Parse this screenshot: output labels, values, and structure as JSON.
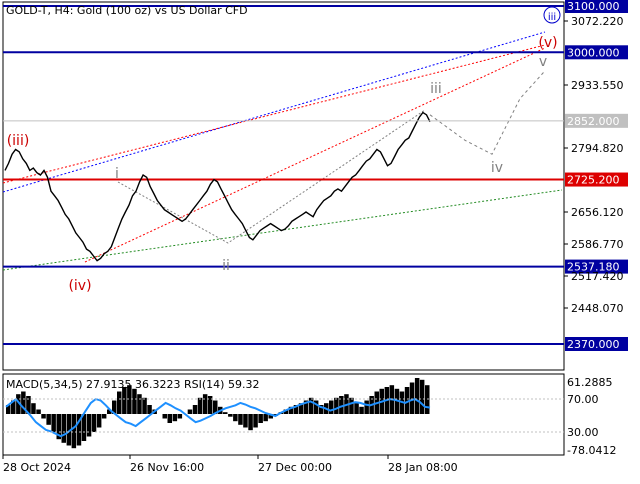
{
  "header": {
    "symbol_title": "GOLD-T, H4:  Gold (100 oz) vs US Dollar CFD",
    "macd_label": "MACD(5,34,5) 27.9135 36.3223 RSI(14) 59.32"
  },
  "colors": {
    "level_line": "#0000a0",
    "key_level_line": "#dd0000",
    "wave_red": "#cc0000",
    "wave_gray": "#808080",
    "price_line": "#000000",
    "rsi_line": "#1e90ff",
    "upper_channel": "#0000ff",
    "red_channel": "#ff0000",
    "green_trend": "#228b22",
    "current_price_label": "#c0c0c0"
  },
  "chart_data": {
    "type": "line",
    "title": "GOLD-T, H4:  Gold (100 oz) vs US Dollar CFD",
    "ylim": [
      2370,
      3100
    ],
    "price_axis_ticks": [
      "3072.220",
      "2933.550",
      "2794.820",
      "2656.120",
      "2586.770",
      "2517.420",
      "2448.070"
    ],
    "x_tick_labels": [
      "28 Oct 2024",
      "26 Nov 16:00",
      "27 Dec 00:00",
      "28 Jan 08:00"
    ],
    "current_price": {
      "value": 2852.0,
      "label": "2852.000"
    },
    "levels": [
      {
        "value": 3100.0,
        "label": "3100.000",
        "color": "#0000a0"
      },
      {
        "value": 3000.0,
        "label": "3000.000",
        "color": "#0000a0"
      },
      {
        "value": 2725.2,
        "label": "2725.200",
        "color": "#dd0000"
      },
      {
        "value": 2537.18,
        "label": "2537.180",
        "color": "#0000a0"
      },
      {
        "value": 2370.0,
        "label": "2370.000",
        "color": "#0000a0"
      }
    ],
    "wave_labels": [
      {
        "text": "(iii)",
        "color": "#cc0000"
      },
      {
        "text": "(iv)",
        "color": "#cc0000"
      },
      {
        "text": "(v)",
        "color": "#cc0000"
      },
      {
        "text": "i",
        "color": "#808080"
      },
      {
        "text": "ii",
        "color": "#808080"
      },
      {
        "text": "iii",
        "color": "#808080"
      },
      {
        "text": "iv",
        "color": "#808080"
      },
      {
        "text": "v",
        "color": "#808080"
      },
      {
        "text": "iii",
        "color": "#0000cc",
        "circled": true
      }
    ],
    "series": [
      {
        "values": [
          2745,
          2760,
          2780,
          2790,
          2785,
          2770,
          2760,
          2745,
          2750,
          2740,
          2735,
          2745,
          2730,
          2700,
          2690,
          2680,
          2665,
          2650,
          2640,
          2625,
          2610,
          2600,
          2590,
          2575,
          2570,
          2560,
          2550,
          2555,
          2565,
          2570,
          2580,
          2600,
          2620,
          2640,
          2655,
          2670,
          2690,
          2700,
          2720,
          2735,
          2730,
          2710,
          2695,
          2680,
          2670,
          2660,
          2655,
          2650,
          2645,
          2640,
          2635,
          2640,
          2650,
          2660,
          2670,
          2680,
          2690,
          2700,
          2715,
          2725,
          2720,
          2705,
          2690,
          2675,
          2660,
          2650,
          2640,
          2630,
          2615,
          2600,
          2595,
          2605,
          2615,
          2620,
          2625,
          2630,
          2625,
          2620,
          2615,
          2618,
          2625,
          2635,
          2640,
          2645,
          2650,
          2655,
          2650,
          2645,
          2660,
          2670,
          2680,
          2685,
          2690,
          2700,
          2705,
          2700,
          2710,
          2720,
          2730,
          2735,
          2745,
          2755,
          2765,
          2770,
          2780,
          2790,
          2785,
          2770,
          2755,
          2760,
          2775,
          2790,
          2800,
          2810,
          2815,
          2830,
          2845,
          2860,
          2870,
          2865,
          2850
        ],
        "color": "#000000"
      }
    ],
    "projection": {
      "points": [
        2865,
        2810,
        2780,
        2900,
        2960
      ]
    },
    "macd_axis_ticks": [
      "61.2885",
      "70.00",
      "30.00",
      "-78.0412"
    ],
    "macd_hist": [
      10,
      15,
      22,
      25,
      20,
      12,
      5,
      -5,
      -12,
      -20,
      -28,
      -32,
      -35,
      -38,
      -35,
      -30,
      -25,
      -20,
      -15,
      -5,
      5,
      15,
      25,
      30,
      32,
      28,
      22,
      18,
      10,
      5,
      0,
      -5,
      -10,
      -8,
      -5,
      0,
      5,
      10,
      18,
      22,
      20,
      15,
      8,
      2,
      -3,
      -8,
      -12,
      -15,
      -18,
      -15,
      -10,
      -8,
      -5,
      -2,
      2,
      5,
      8,
      10,
      12,
      15,
      18,
      15,
      10,
      12,
      15,
      18,
      20,
      22,
      18,
      12,
      8,
      15,
      20,
      25,
      28,
      30,
      32,
      28,
      25,
      30,
      35,
      40,
      38,
      32
    ],
    "rsi": [
      60,
      65,
      70,
      62,
      55,
      48,
      40,
      35,
      30,
      28,
      25,
      22,
      25,
      30,
      35,
      45,
      55,
      65,
      70,
      68,
      62,
      55,
      50,
      45,
      40,
      38,
      35,
      40,
      45,
      50,
      55,
      60,
      65,
      62,
      58,
      55,
      50,
      45,
      40,
      42,
      45,
      48,
      52,
      55,
      58,
      60,
      62,
      65,
      63,
      60,
      58,
      55,
      52,
      50,
      48,
      52,
      55,
      58,
      60,
      63,
      65,
      67,
      64,
      60,
      58,
      55,
      57,
      60,
      62,
      64,
      66,
      65,
      63,
      62,
      64,
      66,
      68,
      70,
      69,
      67,
      65,
      68,
      70,
      66,
      60,
      59
    ],
    "rsi_ylim": [
      0,
      100
    ]
  }
}
